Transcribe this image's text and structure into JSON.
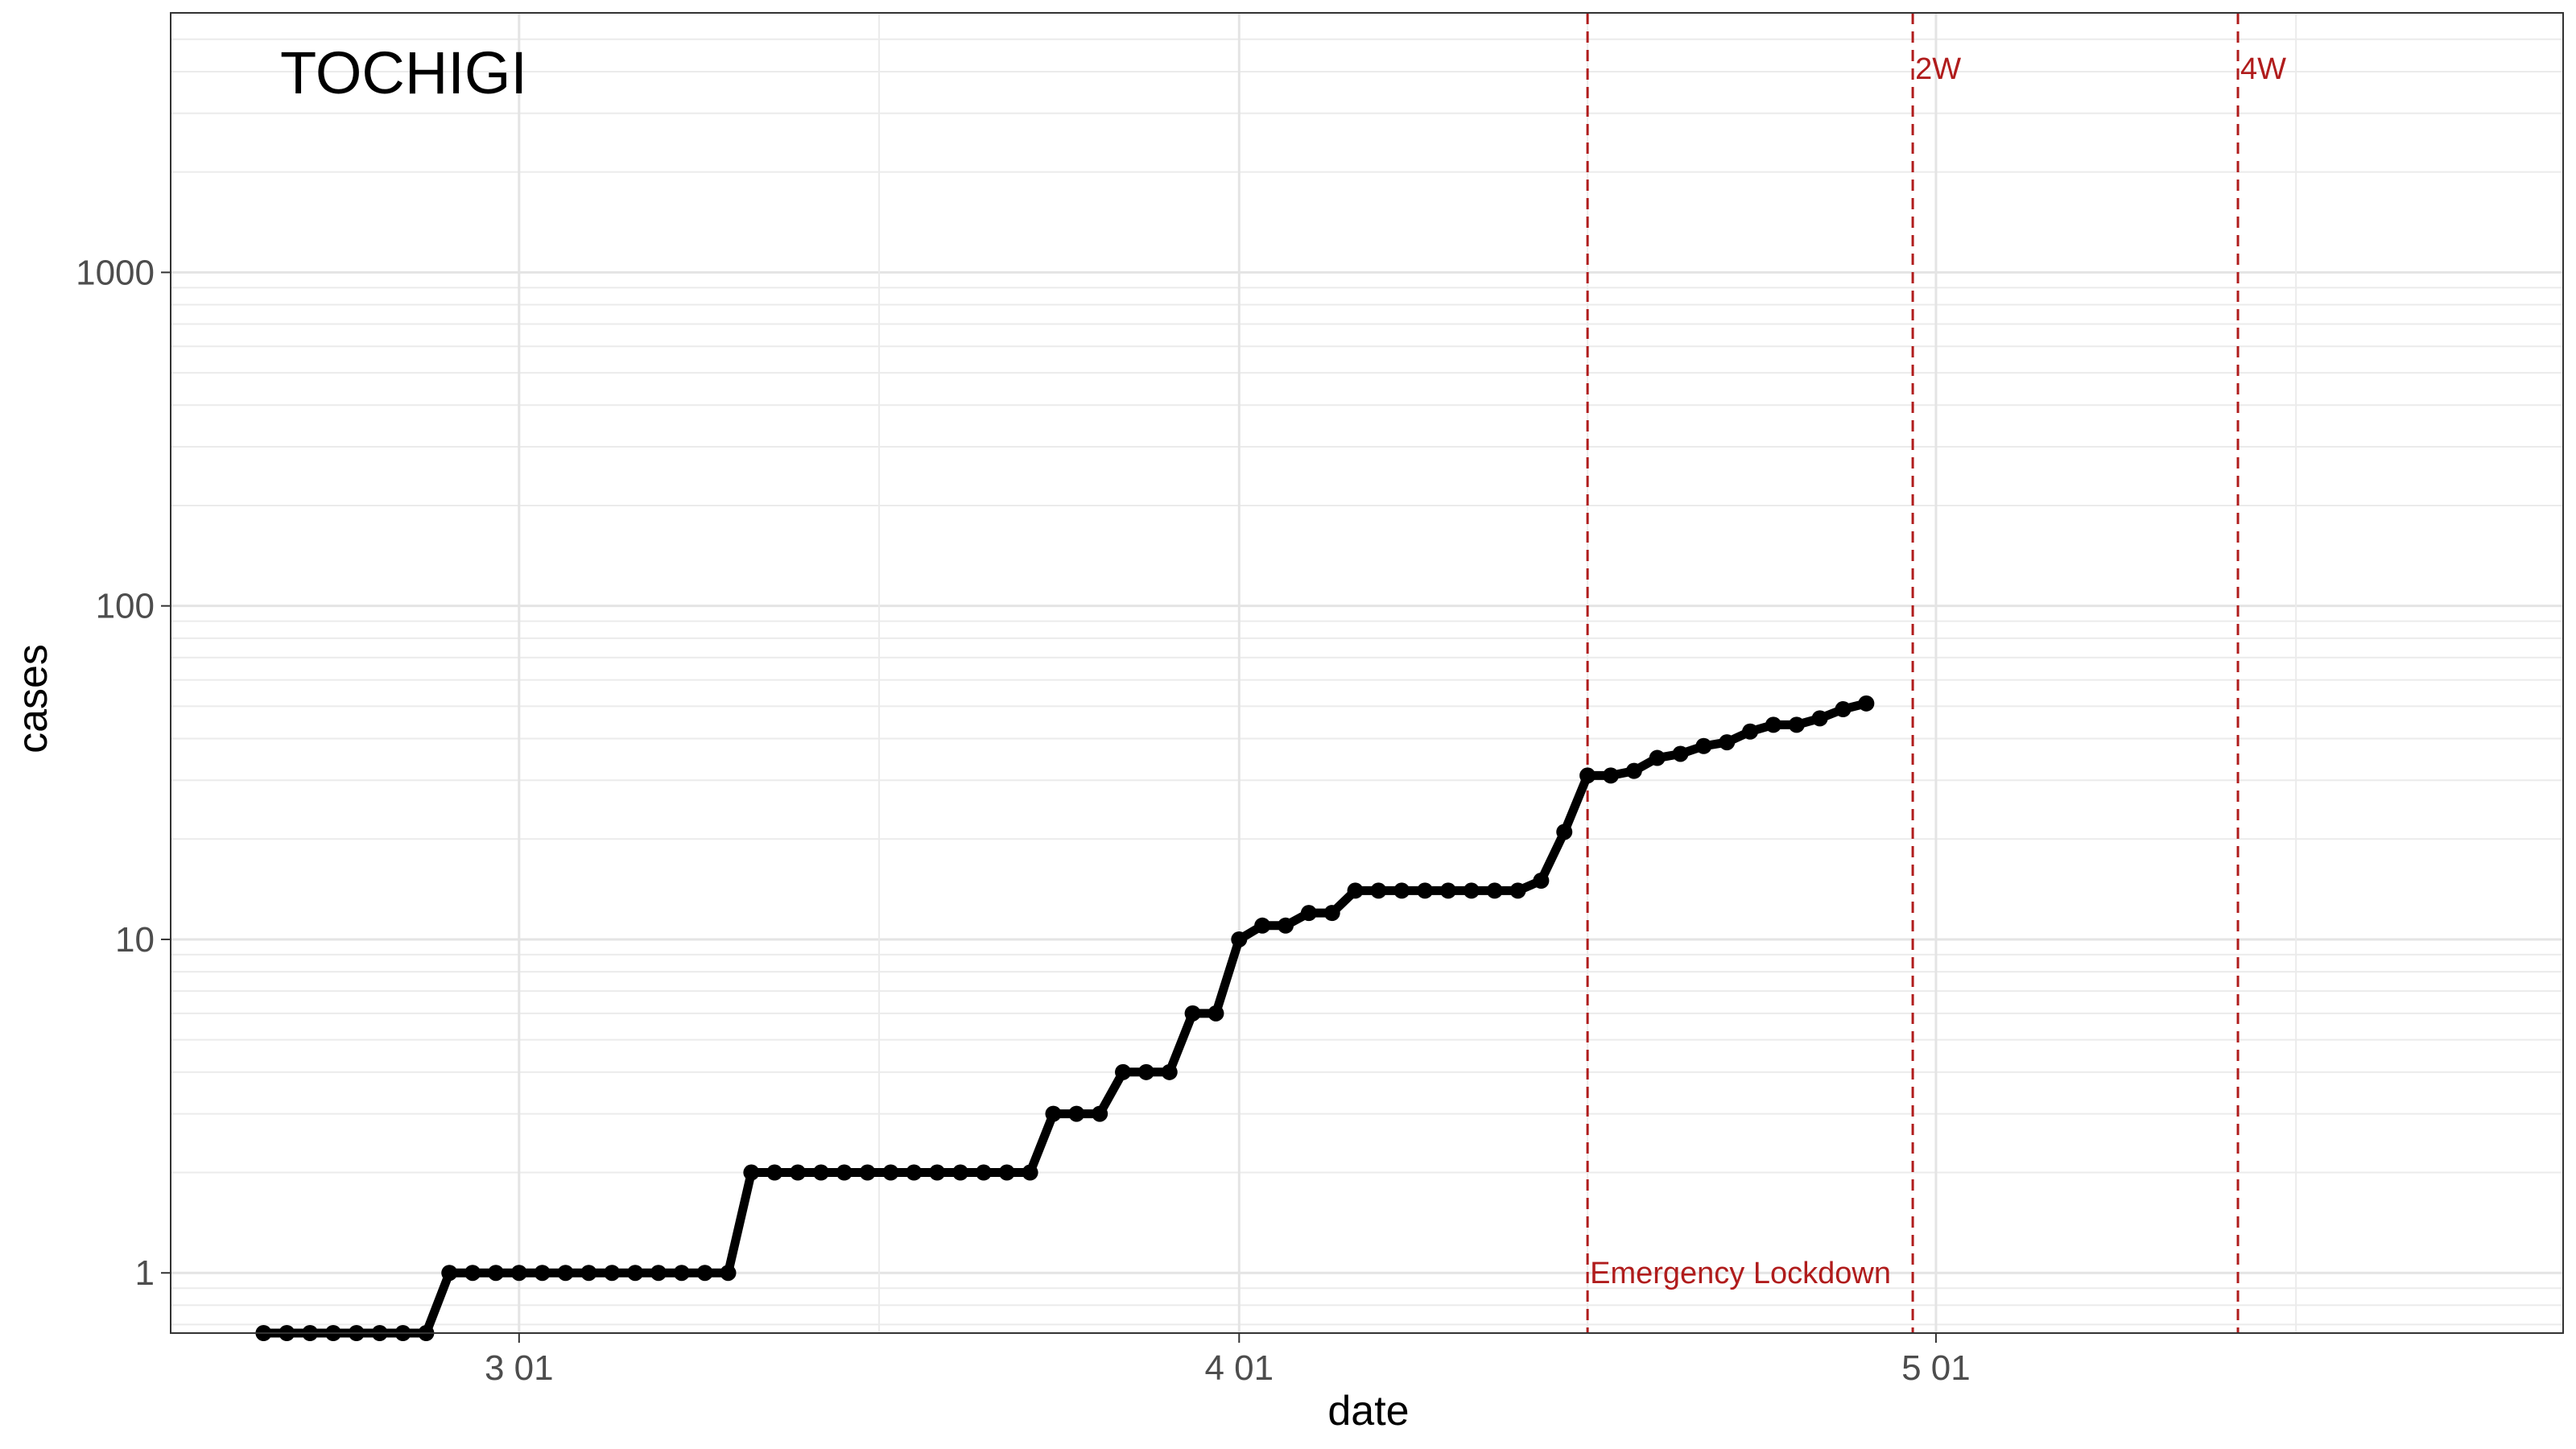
{
  "chart_data": {
    "type": "line",
    "title": "TOCHIGI",
    "xlabel": "date",
    "ylabel": "cases",
    "x_range": [
      "2020-02-15",
      "2020-05-28"
    ],
    "x_ticks": [
      {
        "date": "2020-03-01",
        "label": "3 01"
      },
      {
        "date": "2020-04-01",
        "label": "4 01"
      },
      {
        "date": "2020-05-01",
        "label": "5 01"
      }
    ],
    "y_scale": "log10",
    "ylim": [
      0.66,
      6000
    ],
    "y_ticks": [
      1,
      10,
      100,
      1000
    ],
    "y_tick_labels": [
      "1",
      "10",
      "100",
      "1000"
    ],
    "grid": true,
    "colors": {
      "series": "#000000",
      "reference_line": "#b01c1c"
    },
    "series": [
      {
        "x_start": "2020-02-19",
        "y": [
          0.66,
          0.66,
          0.66,
          0.66,
          0.66,
          0.66,
          0.66,
          0.66,
          1,
          1,
          1,
          1,
          1,
          1,
          1,
          1,
          1,
          1,
          1,
          1,
          1,
          2,
          2,
          2,
          2,
          2,
          2,
          2,
          2,
          2,
          2,
          2,
          2,
          2,
          3,
          3,
          3,
          4,
          4,
          4,
          6,
          6,
          10,
          11,
          11,
          12,
          12,
          14,
          14,
          14,
          14,
          14,
          14,
          14,
          14,
          15,
          21,
          31,
          31,
          32,
          35,
          36,
          38,
          39,
          42,
          44,
          44,
          46,
          49,
          51
        ]
      }
    ],
    "reference_lines": [
      {
        "date": "2020-04-16",
        "label": "Emergency Lockdown",
        "label_position": "bottom"
      },
      {
        "date": "2020-04-30",
        "label": "2W",
        "label_position": "top"
      },
      {
        "date": "2020-05-14",
        "label": "4W",
        "label_position": "top"
      }
    ]
  }
}
